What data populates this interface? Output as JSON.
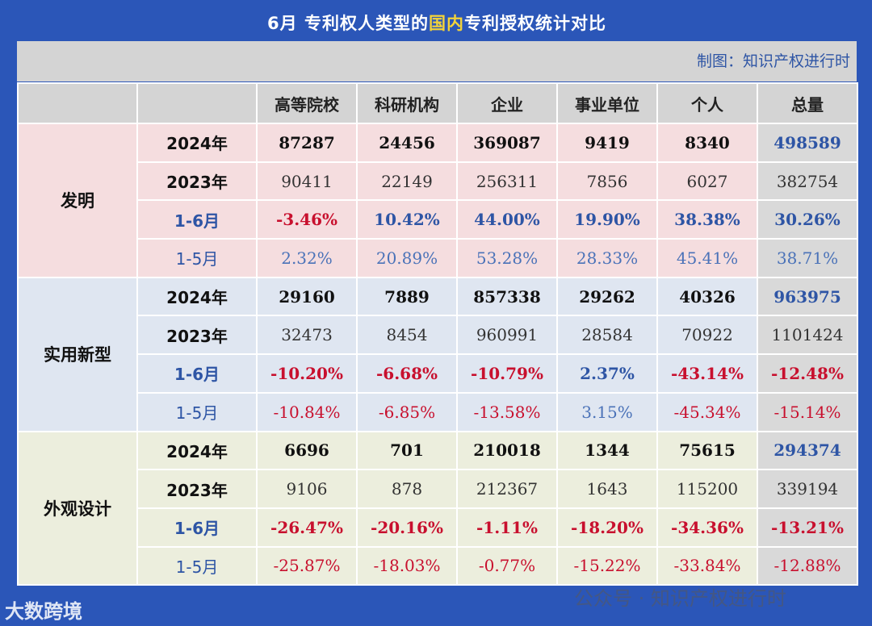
{
  "title": {
    "prefix": "6月  专利权人类型的",
    "highlight": "国内",
    "suffix": "专利授权统计对比"
  },
  "credit": "制图：知识产权进行时",
  "columns": [
    "高等院校",
    "科研机构",
    "企业",
    "事业单位",
    "个人",
    "总量"
  ],
  "groups": [
    {
      "name": "发明",
      "rows": [
        {
          "label": "2024年",
          "values": [
            "87287",
            "24456",
            "369087",
            "9419",
            "8340",
            "498589"
          ]
        },
        {
          "label": "2023年",
          "values": [
            "90411",
            "22149",
            "256311",
            "7856",
            "6027",
            "382754"
          ]
        },
        {
          "label": "1-6月",
          "values": [
            "-3.46%",
            "10.42%",
            "44.00%",
            "19.90%",
            "38.38%",
            "30.26%"
          ]
        },
        {
          "label": "1-5月",
          "values": [
            "2.32%",
            "20.89%",
            "53.28%",
            "28.33%",
            "45.41%",
            "38.71%"
          ]
        }
      ]
    },
    {
      "name": "实用新型",
      "rows": [
        {
          "label": "2024年",
          "values": [
            "29160",
            "7889",
            "857338",
            "29262",
            "40326",
            "963975"
          ]
        },
        {
          "label": "2023年",
          "values": [
            "32473",
            "8454",
            "960991",
            "28584",
            "70922",
            "1101424"
          ]
        },
        {
          "label": "1-6月",
          "values": [
            "-10.20%",
            "-6.68%",
            "-10.79%",
            "2.37%",
            "-43.14%",
            "-12.48%"
          ]
        },
        {
          "label": "1-5月",
          "values": [
            "-10.84%",
            "-6.85%",
            "-13.58%",
            "3.15%",
            "-45.34%",
            "-15.14%"
          ]
        }
      ]
    },
    {
      "name": "外观设计",
      "rows": [
        {
          "label": "2024年",
          "values": [
            "6696",
            "701",
            "210018",
            "1344",
            "75615",
            "294374"
          ]
        },
        {
          "label": "2023年",
          "values": [
            "9106",
            "878",
            "212367",
            "1643",
            "115200",
            "339194"
          ]
        },
        {
          "label": "1-6月",
          "values": [
            "-26.47%",
            "-20.16%",
            "-1.11%",
            "-18.20%",
            "-34.36%",
            "-13.21%"
          ]
        },
        {
          "label": "1-5月",
          "values": [
            "-25.87%",
            "-18.03%",
            "-0.77%",
            "-15.22%",
            "-33.84%",
            "-12.88%"
          ]
        }
      ]
    }
  ],
  "watermark": "公众号 · 知识产权进行时",
  "logo": "大数跨境"
}
